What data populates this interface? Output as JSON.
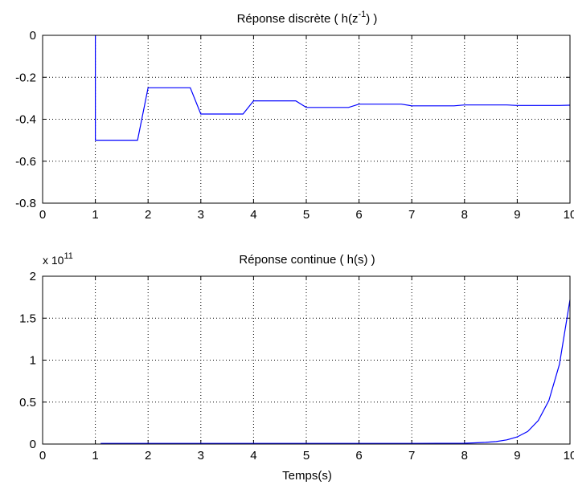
{
  "chart_data": [
    {
      "type": "line",
      "title_main": "Réponse discrète ( h(z",
      "title_sup": "-1",
      "title_end": ") )",
      "xlabel": "",
      "ylabel": "",
      "xlim": [
        0,
        10
      ],
      "ylim": [
        -0.8,
        0
      ],
      "xticks": [
        "0",
        "1",
        "2",
        "3",
        "4",
        "5",
        "6",
        "7",
        "8",
        "9",
        "10"
      ],
      "yticks": [
        "0",
        "-0.2",
        "-0.4",
        "-0.6",
        "-0.8"
      ],
      "ytick_values": [
        0,
        -0.2,
        -0.4,
        -0.6,
        -0.8
      ],
      "grid": "dotted",
      "line_color": "#0000ff",
      "series": [
        {
          "x": [
            1,
            1,
            1.8,
            2,
            2.8,
            3,
            3.8,
            4,
            4.8,
            5,
            5.8,
            6,
            6.8,
            7,
            7.8,
            8,
            8.8,
            9,
            9.8,
            10
          ],
          "y": [
            0,
            -0.5,
            -0.5,
            -0.25,
            -0.25,
            -0.375,
            -0.375,
            -0.3125,
            -0.3125,
            -0.3437,
            -0.3437,
            -0.3281,
            -0.3281,
            -0.3359,
            -0.3359,
            -0.332,
            -0.332,
            -0.334,
            -0.334,
            -0.333
          ]
        }
      ]
    },
    {
      "type": "line",
      "title": "Réponse continue ( h(s) )",
      "exponent_prefix": "x 10",
      "exponent_power": "11",
      "xlabel": "Temps(s)",
      "ylabel": "",
      "xlim": [
        0,
        10
      ],
      "ylim": [
        0,
        2
      ],
      "xticks": [
        "0",
        "1",
        "2",
        "3",
        "4",
        "5",
        "6",
        "7",
        "8",
        "9",
        "10"
      ],
      "yticks": [
        "2",
        "1.5",
        "1",
        "0.5",
        "0"
      ],
      "ytick_values": [
        2,
        1.5,
        1,
        0.5,
        0
      ],
      "grid": "dotted",
      "line_color": "#0000ff",
      "series": [
        {
          "x": [
            1.1,
            2,
            3,
            4,
            5,
            6,
            7,
            8,
            8.2,
            8.4,
            8.6,
            8.8,
            9,
            9.2,
            9.4,
            9.6,
            9.8,
            10
          ],
          "y": [
            0.008,
            0.008,
            0.008,
            0.008,
            0.008,
            0.008,
            0.008,
            0.01,
            0.014,
            0.02,
            0.03,
            0.05,
            0.085,
            0.15,
            0.28,
            0.52,
            0.95,
            1.72
          ]
        }
      ]
    }
  ]
}
